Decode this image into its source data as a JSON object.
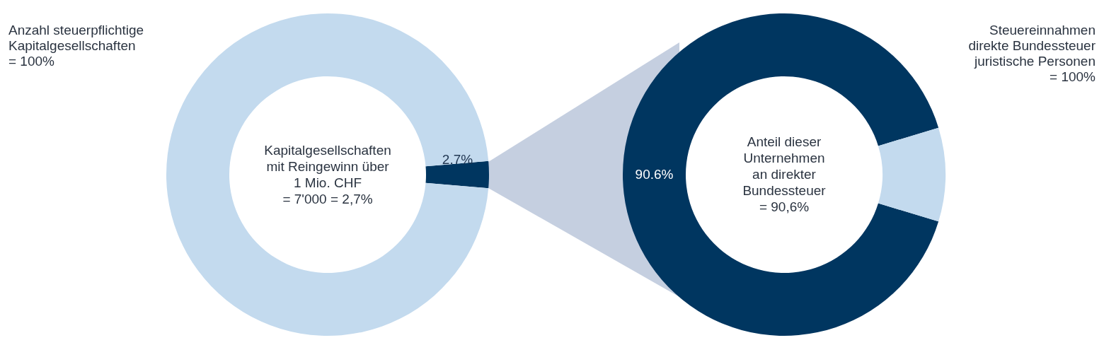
{
  "chart_data": [
    {
      "type": "donut",
      "title": "Anzahl steuerpflichtige\nKapitalgesellschaften\n= 100%",
      "annotations": [
        "Kapitalgesellschaften\nmit Reingewinn über\n1 Mio. CHF\n= 7'000 = 2,7%"
      ],
      "categories": [
        null,
        null
      ],
      "values": [
        2.7,
        97.3
      ],
      "colors": [
        "#003660",
        "#c3daee"
      ],
      "value_labels": [
        "2.7%",
        null
      ]
    },
    {
      "type": "donut",
      "title": "Steuereinnahmen\ndirekte Bundessteuer\njuristische Personen\n= 100%",
      "annotations": [
        "Anteil dieser\nUnternehmen\nan direkter\nBundessteuer\n= 90,6%"
      ],
      "categories": [
        null,
        null
      ],
      "values": [
        90.6,
        9.4
      ],
      "colors": [
        "#003660",
        "#c3daee"
      ],
      "value_labels": [
        "90.6%",
        null
      ]
    }
  ]
}
